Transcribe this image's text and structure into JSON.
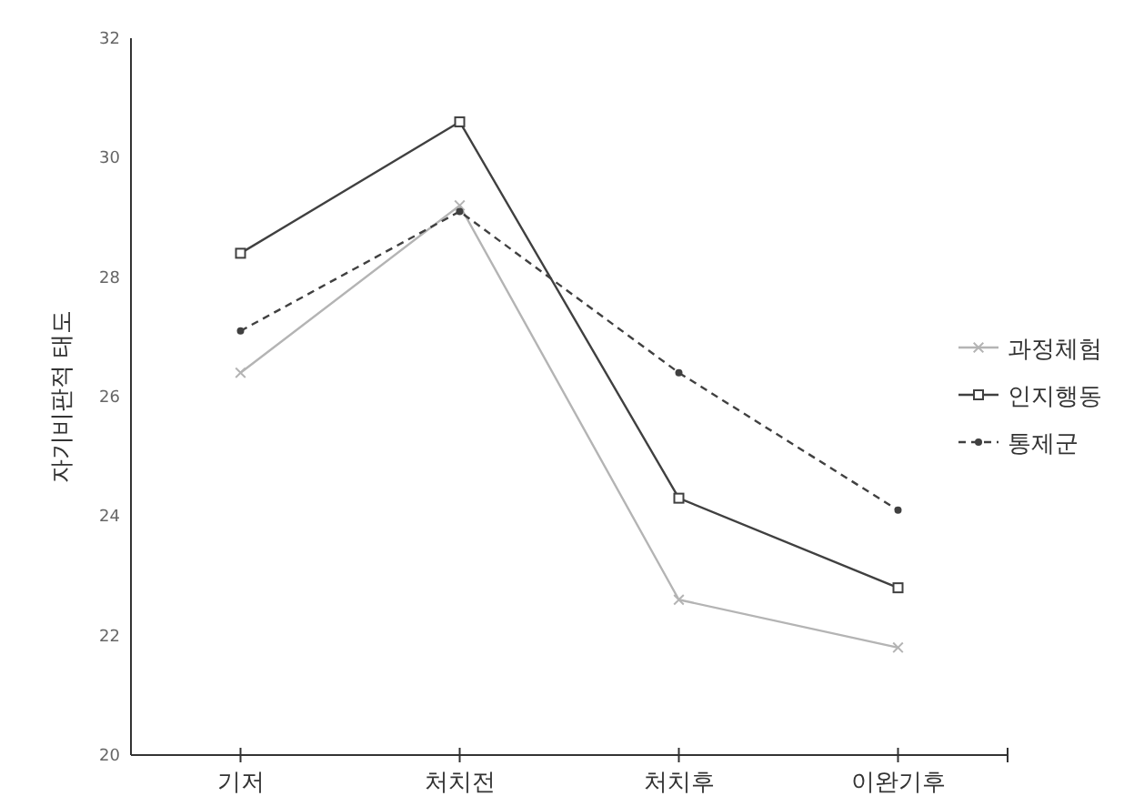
{
  "chart_data": {
    "type": "line",
    "ylabel": "자기비판적 태도",
    "categories": [
      "기저",
      "처치전",
      "처치후",
      "이완기후"
    ],
    "ylim": [
      20,
      32
    ],
    "yticks": [
      20,
      22,
      24,
      26,
      28,
      30,
      32
    ],
    "grid": false,
    "legend": "right",
    "series": [
      {
        "name": "과정체험",
        "color": "#b4b4b4",
        "marker": "cross",
        "line_style": "solid",
        "values": [
          26.4,
          29.2,
          22.6,
          21.8
        ]
      },
      {
        "name": "인지행동",
        "color": "#404040",
        "marker": "square",
        "line_style": "solid",
        "values": [
          28.4,
          30.6,
          24.3,
          22.8
        ]
      },
      {
        "name": "통제군",
        "color": "#404040",
        "marker": "circle",
        "line_style": "dashed",
        "values": [
          27.1,
          29.1,
          26.4,
          24.1
        ]
      }
    ]
  }
}
